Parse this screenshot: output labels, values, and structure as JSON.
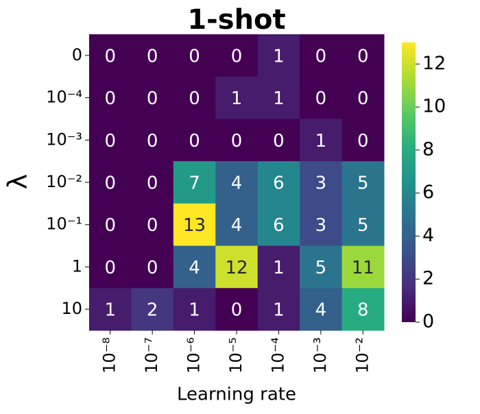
{
  "chart_data": {
    "type": "heatmap",
    "title": "1-shot",
    "x_label": "Learning rate",
    "y_label": "λ",
    "categories": [
      "10⁻⁸",
      "10⁻⁷",
      "10⁻⁶",
      "10⁻⁵",
      "10⁻⁴",
      "10⁻³",
      "10⁻²"
    ],
    "rows": [
      "0",
      "10⁻⁴",
      "10⁻³",
      "10⁻²",
      "10⁻¹",
      "1",
      "10"
    ],
    "values": [
      [
        0,
        0,
        0,
        0,
        1,
        0,
        0
      ],
      [
        0,
        0,
        0,
        1,
        1,
        0,
        0
      ],
      [
        0,
        0,
        0,
        0,
        0,
        1,
        0
      ],
      [
        0,
        0,
        7,
        4,
        6,
        3,
        5
      ],
      [
        0,
        0,
        13,
        4,
        6,
        3,
        5
      ],
      [
        0,
        0,
        4,
        12,
        1,
        5,
        11
      ],
      [
        1,
        2,
        1,
        0,
        1,
        4,
        8
      ]
    ],
    "colormap": "viridis",
    "colorbar_lim": [
      0,
      13
    ],
    "colorbar_ticks": [
      0,
      2,
      4,
      6,
      8,
      10,
      12
    ]
  }
}
